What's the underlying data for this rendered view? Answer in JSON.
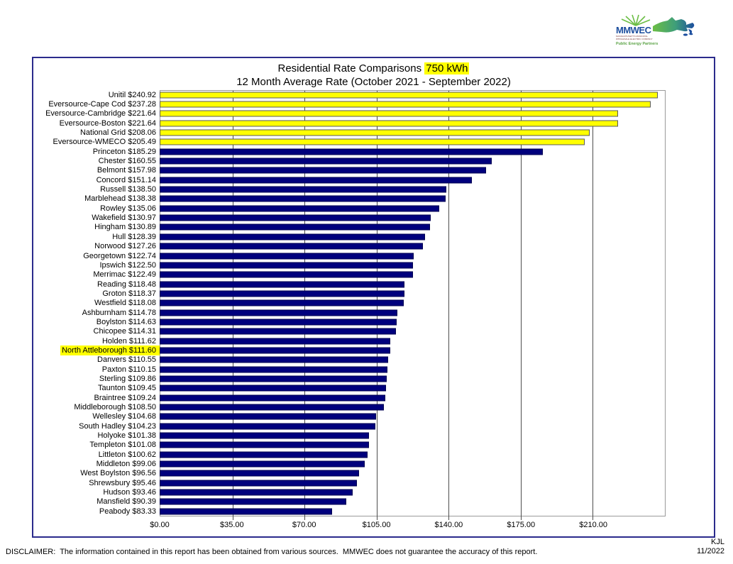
{
  "header": {
    "title_main": "Residential Rate Comparisons",
    "title_highlight": "750 kWh",
    "title_sub": "12 Month Average Rate (October 2021 - September 2022)",
    "highlight_color": "#FFFF00"
  },
  "logo": {
    "name": "MMWEC",
    "line1": "MASSACHUSETTS MUNICIPAL",
    "line2": "WHOLESALE ELECTRIC COMPANY",
    "tagline": "Public Energy Partners",
    "blue": "#1C4E9E",
    "green": "#6CBE45"
  },
  "chart_data": {
    "type": "bar",
    "orientation": "horizontal",
    "title": "Residential Rate Comparisons 750 kWh",
    "subtitle": "12 Month Average Rate (October 2021 - September 2022)",
    "xlabel": "",
    "ylabel": "",
    "xlim": [
      0,
      245
    ],
    "x_ticks": [
      "$0.00",
      "$35.00",
      "$70.00",
      "$105.00",
      "$140.00",
      "$175.00",
      "$210.00"
    ],
    "gridline_step": 35,
    "grid": true,
    "legend": false,
    "colors": {
      "yellow": "#FFFF00",
      "navy": "#00007D"
    },
    "bars": [
      {
        "label": "Unitil",
        "value": 240.92,
        "color": "yellow"
      },
      {
        "label": "Eversource-Cape Cod",
        "value": 237.28,
        "color": "yellow"
      },
      {
        "label": "Eversource-Cambridge",
        "value": 221.64,
        "color": "yellow"
      },
      {
        "label": "Eversource-Boston",
        "value": 221.64,
        "color": "yellow"
      },
      {
        "label": "National Grid",
        "value": 208.06,
        "color": "yellow"
      },
      {
        "label": "Eversource-WMECO",
        "value": 205.49,
        "color": "yellow"
      },
      {
        "label": "Princeton",
        "value": 185.29,
        "color": "navy"
      },
      {
        "label": "Chester",
        "value": 160.55,
        "color": "navy"
      },
      {
        "label": "Belmont",
        "value": 157.98,
        "color": "navy"
      },
      {
        "label": "Concord",
        "value": 151.14,
        "color": "navy"
      },
      {
        "label": "Russell",
        "value": 138.5,
        "color": "navy"
      },
      {
        "label": "Marblehead",
        "value": 138.38,
        "color": "navy"
      },
      {
        "label": "Rowley",
        "value": 135.06,
        "color": "navy"
      },
      {
        "label": "Wakefield",
        "value": 130.97,
        "color": "navy"
      },
      {
        "label": "Hingham",
        "value": 130.89,
        "color": "navy"
      },
      {
        "label": "Hull",
        "value": 128.39,
        "color": "navy"
      },
      {
        "label": "Norwood",
        "value": 127.26,
        "color": "navy"
      },
      {
        "label": "Georgetown",
        "value": 122.74,
        "color": "navy"
      },
      {
        "label": "Ipswich",
        "value": 122.5,
        "color": "navy"
      },
      {
        "label": "Merrimac",
        "value": 122.49,
        "color": "navy"
      },
      {
        "label": "Reading",
        "value": 118.48,
        "color": "navy"
      },
      {
        "label": "Groton",
        "value": 118.37,
        "color": "navy"
      },
      {
        "label": "Westfield",
        "value": 118.08,
        "color": "navy"
      },
      {
        "label": "Ashburnham",
        "value": 114.78,
        "color": "navy"
      },
      {
        "label": "Boylston",
        "value": 114.63,
        "color": "navy"
      },
      {
        "label": "Chicopee",
        "value": 114.31,
        "color": "navy"
      },
      {
        "label": "Holden",
        "value": 111.62,
        "color": "navy"
      },
      {
        "label": "North Attleborough",
        "value": 111.6,
        "color": "navy",
        "highlight": true
      },
      {
        "label": "Danvers",
        "value": 110.55,
        "color": "navy"
      },
      {
        "label": "Paxton",
        "value": 110.15,
        "color": "navy"
      },
      {
        "label": "Sterling",
        "value": 109.86,
        "color": "navy"
      },
      {
        "label": "Taunton",
        "value": 109.45,
        "color": "navy"
      },
      {
        "label": "Braintree",
        "value": 109.24,
        "color": "navy"
      },
      {
        "label": "Middleborough",
        "value": 108.5,
        "color": "navy"
      },
      {
        "label": "Wellesley",
        "value": 104.68,
        "color": "navy"
      },
      {
        "label": "South Hadley",
        "value": 104.23,
        "color": "navy"
      },
      {
        "label": "Holyoke",
        "value": 101.38,
        "color": "navy"
      },
      {
        "label": "Templeton",
        "value": 101.08,
        "color": "navy"
      },
      {
        "label": "Littleton",
        "value": 100.62,
        "color": "navy"
      },
      {
        "label": "Middleton",
        "value": 99.06,
        "color": "navy"
      },
      {
        "label": "West Boylston",
        "value": 96.56,
        "color": "navy"
      },
      {
        "label": "Shrewsbury",
        "value": 95.46,
        "color": "navy"
      },
      {
        "label": "Hudson",
        "value": 93.46,
        "color": "navy"
      },
      {
        "label": "Mansfield",
        "value": 90.39,
        "color": "navy"
      },
      {
        "label": "Peabody",
        "value": 83.33,
        "color": "navy"
      }
    ]
  },
  "footer": {
    "disclaimer": "DISCLAIMER:  The information contained in this report has been obtained from various sources.  MMWEC does not guarantee the accuracy of this report.",
    "initials": "KJL",
    "date": "11/2022"
  }
}
